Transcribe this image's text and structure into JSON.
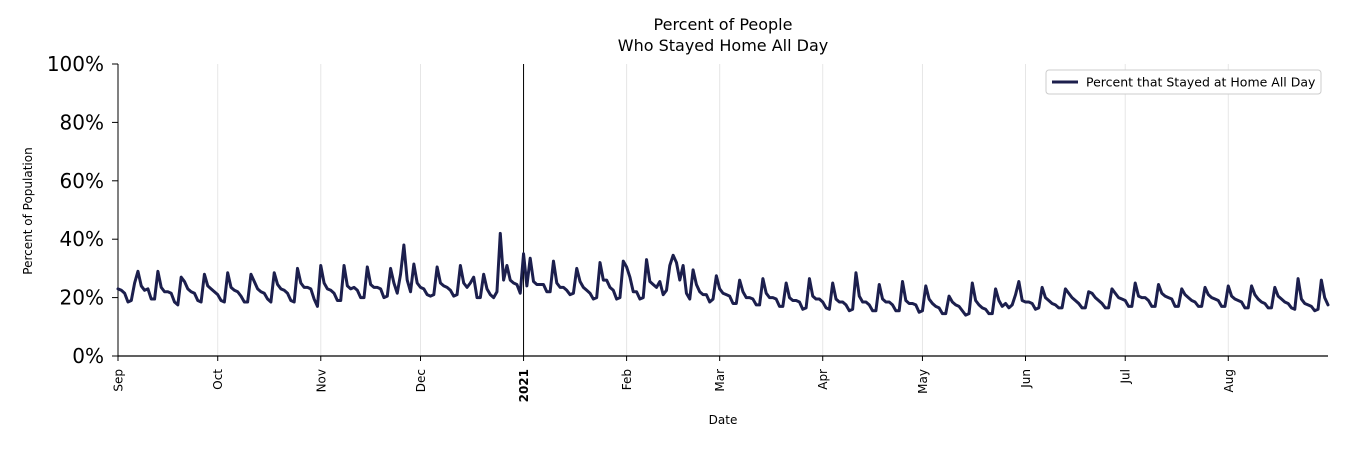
{
  "chart_data": {
    "type": "line",
    "title": "Percent of People",
    "subtitle": "Who Stayed Home All Day",
    "xlabel": "Date",
    "ylabel": "Percent of Population",
    "ylim": [
      0,
      100
    ],
    "y_ticks": [
      "0%",
      "20%",
      "40%",
      "60%",
      "80%",
      "100%"
    ],
    "x_ticks": [
      "Sep",
      "Oct",
      "Nov",
      "Dec",
      "2021",
      "Feb",
      "Mar",
      "Apr",
      "May",
      "Jun",
      "Jul",
      "Aug"
    ],
    "x_tick_days": [
      0,
      30,
      61,
      91,
      122,
      153,
      181,
      212,
      242,
      273,
      303,
      334
    ],
    "x_range_days": [
      0,
      364
    ],
    "start_date": "2020-09-01",
    "highlight_tick": "2021",
    "grid": "vertical",
    "legend": {
      "placement": "top-right",
      "label": "Percent that Stayed at Home All Day"
    },
    "series": [
      {
        "name": "Percent that Stayed at Home All Day",
        "color": "#1c1f4d",
        "values": [
          23,
          22.5,
          21.5,
          18.5,
          19,
          25,
          29,
          24,
          22.5,
          23,
          19.5,
          19.5,
          29,
          23.5,
          22,
          22,
          21.5,
          18.5,
          17.5,
          27,
          25.5,
          23,
          22,
          21.5,
          19,
          18.5,
          28,
          24,
          23,
          22,
          21,
          19,
          18.5,
          28.5,
          23.5,
          22.5,
          22,
          20.5,
          18.5,
          18.5,
          28,
          25.5,
          23,
          22,
          21.5,
          19.5,
          18.5,
          28.5,
          24.5,
          23,
          22.5,
          21.5,
          19,
          18.5,
          30,
          25,
          23.5,
          23.5,
          23,
          19.5,
          17,
          31,
          25,
          23,
          22.5,
          21.5,
          19,
          19,
          31,
          24,
          23,
          23.5,
          22.5,
          20,
          20,
          30.5,
          24.5,
          23.5,
          23.5,
          23,
          20,
          20.5,
          30,
          25,
          21.5,
          28,
          38,
          26,
          22,
          31.5,
          25,
          23.5,
          23,
          21,
          20.5,
          21,
          30.5,
          25,
          24,
          23.5,
          22.5,
          20.5,
          21,
          31,
          25,
          23.5,
          25,
          27,
          20,
          20,
          28,
          23,
          21,
          20,
          22,
          42,
          26,
          31,
          26,
          25,
          24.5,
          21.5,
          35,
          24,
          33.5,
          25.5,
          24.5,
          24.5,
          24.5,
          22,
          22,
          32.5,
          25,
          23.5,
          23.5,
          22.5,
          21,
          21.5,
          30,
          25.5,
          23.5,
          22.5,
          21.5,
          19.5,
          20,
          32,
          26,
          26,
          23.5,
          22.5,
          19.5,
          20,
          32.5,
          30.5,
          27,
          22,
          22,
          19.5,
          20,
          33,
          25.5,
          24.5,
          23.5,
          25.5,
          21,
          22.5,
          31,
          34.5,
          32,
          26,
          31,
          21.5,
          19.5,
          29.5,
          24.5,
          22,
          21,
          21,
          18.5,
          19.5,
          27.5,
          23,
          21.5,
          21,
          20.5,
          18,
          18,
          26,
          22,
          20,
          20,
          19.5,
          17.5,
          17.5,
          26.5,
          21.5,
          20,
          20,
          19.5,
          17,
          17,
          25,
          20,
          19,
          19,
          18.5,
          16,
          16.5,
          26.5,
          20.5,
          19.5,
          19.5,
          18.5,
          16.5,
          16,
          25,
          19.5,
          18.5,
          18.5,
          17.5,
          15.5,
          16,
          28.5,
          20.5,
          18.5,
          18.5,
          17.5,
          15.5,
          15.5,
          24.5,
          19.5,
          18.5,
          18.5,
          17.5,
          15.5,
          15.5,
          25.5,
          19,
          18,
          18,
          17.5,
          15,
          15.5,
          24,
          19.5,
          18,
          17,
          16.5,
          14.5,
          14.5,
          20.5,
          18.5,
          17.5,
          17,
          15.5,
          14,
          14.5,
          25,
          19,
          17.5,
          16.5,
          16,
          14.5,
          14.5,
          23,
          19,
          17,
          18,
          16.5,
          17.5,
          21,
          25.5,
          19,
          18.5,
          18.5,
          18,
          16,
          16.5,
          23.5,
          20,
          19,
          18,
          17.5,
          16.5,
          16.5,
          23,
          21.5,
          20,
          19,
          18,
          16.5,
          16.5,
          22,
          21.5,
          20,
          19,
          18,
          16.5,
          16.5,
          23,
          21.5,
          20,
          19.5,
          19,
          17,
          17,
          25,
          20.5,
          20,
          20,
          19,
          17,
          17,
          24.5,
          21.5,
          20.5,
          20,
          19.5,
          17,
          17,
          23,
          21,
          20,
          19,
          18.5,
          17,
          17,
          23.5,
          21,
          20,
          19.5,
          19,
          17,
          17,
          24,
          20.5,
          19.5,
          19,
          18.5,
          16.5,
          16.5,
          24,
          21,
          19.5,
          18.5,
          18,
          16.5,
          16.5,
          23.5,
          20.5,
          19.5,
          18.5,
          18,
          16.5,
          16,
          26.5,
          19.5,
          18,
          17.5,
          17,
          15.5,
          16,
          26,
          20,
          17.5
        ]
      }
    ]
  }
}
